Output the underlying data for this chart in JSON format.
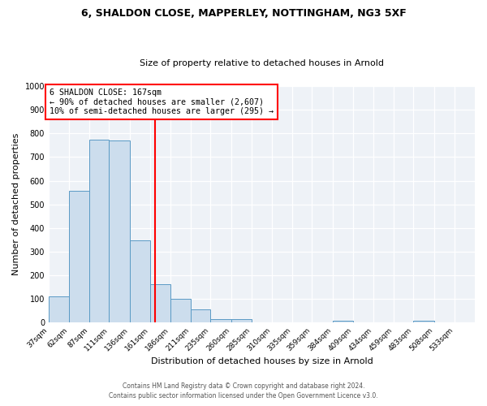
{
  "title_line1": "6, SHALDON CLOSE, MAPPERLEY, NOTTINGHAM, NG3 5XF",
  "title_line2": "Size of property relative to detached houses in Arnold",
  "xlabel": "Distribution of detached houses by size in Arnold",
  "ylabel": "Number of detached properties",
  "tick_labels": [
    "37sqm",
    "62sqm",
    "87sqm",
    "111sqm",
    "136sqm",
    "161sqm",
    "186sqm",
    "211sqm",
    "235sqm",
    "260sqm",
    "285sqm",
    "310sqm",
    "335sqm",
    "359sqm",
    "384sqm",
    "409sqm",
    "434sqm",
    "459sqm",
    "483sqm",
    "508sqm",
    "533sqm"
  ],
  "bin_edges": [
    37,
    62,
    87,
    111,
    136,
    161,
    186,
    211,
    235,
    260,
    285,
    310,
    335,
    359,
    384,
    409,
    434,
    459,
    483,
    508,
    533,
    558
  ],
  "bar_heights": [
    113,
    557,
    775,
    770,
    347,
    163,
    100,
    55,
    15,
    15,
    0,
    0,
    0,
    0,
    10,
    0,
    0,
    0,
    10,
    0,
    0
  ],
  "bar_color": "#ccdded",
  "bar_edge_color": "#5a9ac5",
  "vline_x": 167,
  "vline_color": "red",
  "annotation_text": "6 SHALDON CLOSE: 167sqm\n← 90% of detached houses are smaller (2,607)\n10% of semi-detached houses are larger (295) →",
  "annotation_box_facecolor": "white",
  "annotation_box_edgecolor": "red",
  "ylim": [
    0,
    1000
  ],
  "yticks": [
    0,
    100,
    200,
    300,
    400,
    500,
    600,
    700,
    800,
    900,
    1000
  ],
  "footer_line1": "Contains HM Land Registry data © Crown copyright and database right 2024.",
  "footer_line2": "Contains public sector information licensed under the Open Government Licence v3.0.",
  "plot_bg_color": "#eef2f7",
  "grid_color": "white",
  "title1_fontsize": 9,
  "title2_fontsize": 8,
  "xlabel_fontsize": 8,
  "ylabel_fontsize": 8,
  "tick_fontsize": 6.5,
  "footer_fontsize": 5.5
}
